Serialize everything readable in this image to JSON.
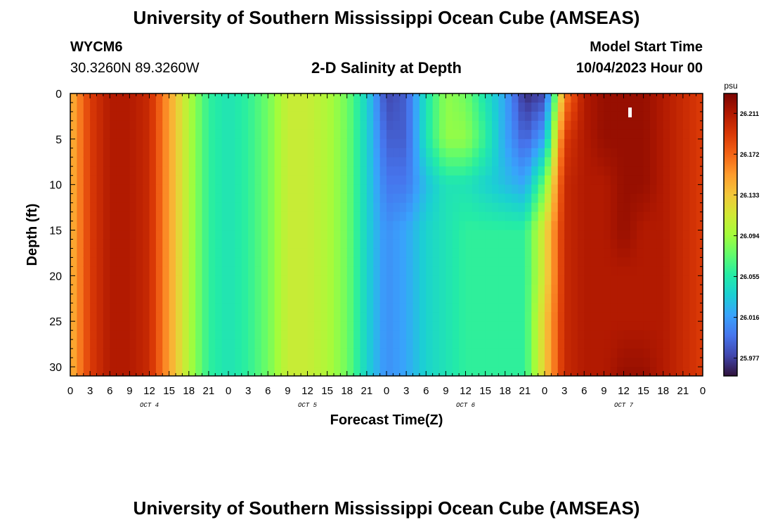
{
  "header": {
    "title": "University of Southern Mississippi Ocean Cube (AMSEAS)",
    "station_id": "WYCM6",
    "station_coords": "30.3260N  89.3260W",
    "model_start_label": "Model Start Time",
    "model_start_value": "10/04/2023 Hour 00"
  },
  "footer": {
    "title": "University of Southern Mississippi Ocean Cube (AMSEAS)"
  },
  "chart_data": {
    "type": "heatmap",
    "title": "2-D Salinity at Depth",
    "xlabel": "Forecast Time(Z)",
    "ylabel": "Depth (ft)",
    "colorbar_unit": "psu",
    "xlim": [
      0,
      96
    ],
    "ylim": [
      0,
      31
    ],
    "y_inverted": true,
    "x_tick_labels": [
      "0",
      "3",
      "6",
      "9",
      "12",
      "15",
      "18",
      "21",
      "0",
      "3",
      "6",
      "9",
      "12",
      "15",
      "18",
      "21",
      "0",
      "3",
      "6",
      "9",
      "12",
      "15",
      "18",
      "21",
      "0",
      "3",
      "6",
      "9",
      "12",
      "15",
      "18",
      "21",
      "0"
    ],
    "x_tick_hours": [
      0,
      3,
      6,
      9,
      12,
      15,
      18,
      21,
      24,
      27,
      30,
      33,
      36,
      39,
      42,
      45,
      48,
      51,
      54,
      57,
      60,
      63,
      66,
      69,
      72,
      75,
      78,
      81,
      84,
      87,
      90,
      93,
      96
    ],
    "y_ticks": [
      0,
      5,
      10,
      15,
      20,
      25,
      30
    ],
    "day_labels": [
      {
        "label": "OCT 4",
        "hour": 12
      },
      {
        "label": "OCT 5",
        "hour": 36
      },
      {
        "label": "OCT 6",
        "hour": 60
      },
      {
        "label": "OCT 7",
        "hour": 84
      }
    ],
    "colorbar_ticks": [
      26.211,
      26.172,
      26.133,
      26.094,
      26.055,
      26.016,
      25.977
    ],
    "colorbar_range": [
      25.96,
      26.23
    ],
    "colormap": [
      "#30123b",
      "#4145ab",
      "#4675ed",
      "#39a2fc",
      "#1bcfd4",
      "#24eca6",
      "#61fc6c",
      "#a4fc3b",
      "#d1e834",
      "#f3c63a",
      "#fe9b2d",
      "#f36315",
      "#d93806",
      "#b11901",
      "#7a0402"
    ],
    "hours": [
      0,
      3,
      6,
      9,
      12,
      15,
      18,
      21,
      24,
      27,
      30,
      33,
      36,
      39,
      42,
      45,
      48,
      51,
      54,
      57,
      60,
      63,
      66,
      69,
      72,
      75,
      78,
      81,
      84,
      87,
      90,
      93,
      96
    ],
    "depths": [
      0,
      5,
      10,
      15,
      20,
      25,
      31
    ],
    "salinity_psu": [
      [
        26.14,
        26.19,
        26.21,
        26.21,
        26.2,
        26.15,
        26.1,
        26.06,
        26.05,
        26.06,
        26.08,
        26.11,
        26.11,
        26.1,
        26.08,
        26.04,
        25.98,
        25.99,
        26.05,
        26.09,
        26.08,
        26.05,
        26.02,
        25.97,
        25.98,
        26.16,
        26.21,
        26.22,
        26.22,
        26.22,
        26.21,
        26.2,
        26.19
      ],
      [
        26.14,
        26.19,
        26.21,
        26.21,
        26.2,
        26.15,
        26.1,
        26.06,
        26.05,
        26.06,
        26.08,
        26.11,
        26.11,
        26.1,
        26.08,
        26.04,
        25.99,
        25.99,
        26.05,
        26.09,
        26.09,
        26.06,
        26.02,
        25.99,
        26.02,
        26.19,
        26.21,
        26.22,
        26.22,
        26.22,
        26.21,
        26.2,
        26.19
      ],
      [
        26.14,
        26.19,
        26.21,
        26.21,
        26.2,
        26.15,
        26.1,
        26.06,
        26.05,
        26.06,
        26.08,
        26.11,
        26.11,
        26.1,
        26.08,
        26.04,
        26.0,
        26.0,
        26.03,
        26.05,
        26.05,
        26.04,
        26.03,
        26.02,
        26.08,
        26.2,
        26.21,
        26.21,
        26.22,
        26.22,
        26.21,
        26.2,
        26.19
      ],
      [
        26.14,
        26.19,
        26.21,
        26.21,
        26.2,
        26.15,
        26.1,
        26.06,
        26.05,
        26.06,
        26.08,
        26.11,
        26.11,
        26.1,
        26.08,
        26.04,
        26.01,
        26.02,
        26.04,
        26.05,
        26.06,
        26.06,
        26.06,
        26.06,
        26.12,
        26.2,
        26.21,
        26.21,
        26.22,
        26.21,
        26.21,
        26.2,
        26.19
      ],
      [
        26.14,
        26.19,
        26.21,
        26.21,
        26.2,
        26.15,
        26.1,
        26.06,
        26.05,
        26.06,
        26.08,
        26.11,
        26.11,
        26.1,
        26.08,
        26.04,
        26.01,
        26.02,
        26.04,
        26.05,
        26.06,
        26.06,
        26.06,
        26.06,
        26.12,
        26.2,
        26.21,
        26.21,
        26.21,
        26.21,
        26.21,
        26.2,
        26.19
      ],
      [
        26.14,
        26.19,
        26.21,
        26.21,
        26.2,
        26.15,
        26.1,
        26.06,
        26.05,
        26.06,
        26.08,
        26.11,
        26.11,
        26.1,
        26.08,
        26.04,
        26.01,
        26.02,
        26.04,
        26.05,
        26.06,
        26.06,
        26.06,
        26.06,
        26.13,
        26.2,
        26.21,
        26.21,
        26.21,
        26.21,
        26.21,
        26.2,
        26.19
      ],
      [
        26.14,
        26.19,
        26.21,
        26.21,
        26.2,
        26.15,
        26.1,
        26.06,
        26.05,
        26.06,
        26.08,
        26.11,
        26.11,
        26.1,
        26.08,
        26.04,
        26.01,
        26.02,
        26.04,
        26.05,
        26.06,
        26.06,
        26.06,
        26.06,
        26.13,
        26.2,
        26.21,
        26.21,
        26.22,
        26.22,
        26.21,
        26.2,
        26.19
      ]
    ]
  }
}
